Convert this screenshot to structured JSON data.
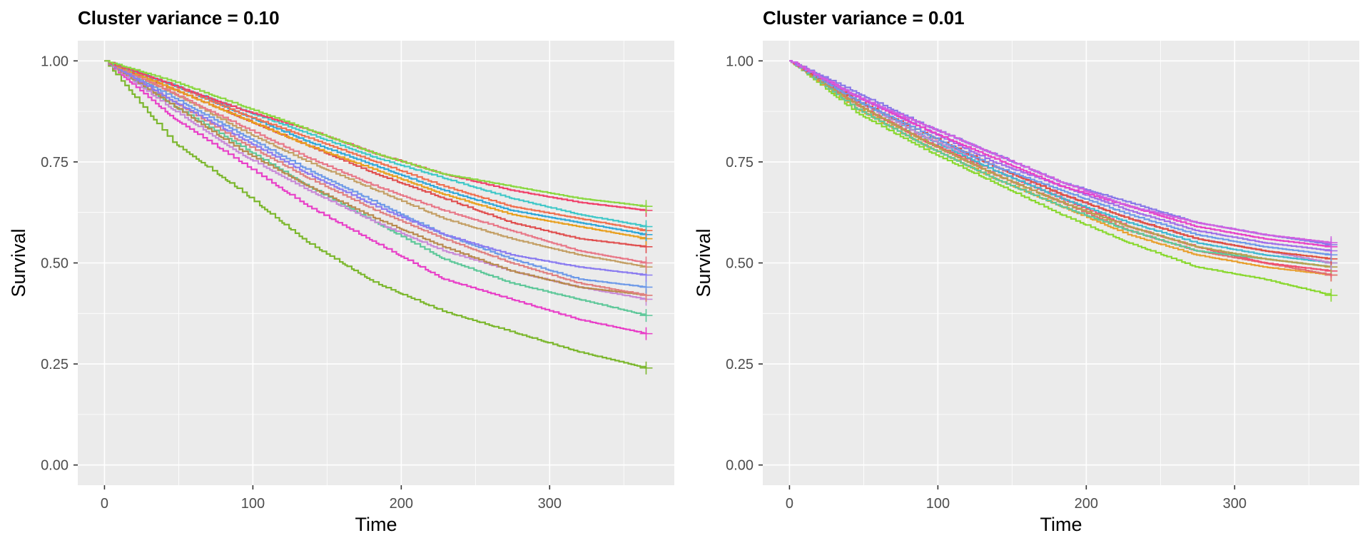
{
  "chart_data": [
    {
      "type": "line",
      "title": "Cluster variance = 0.10",
      "xlabel": "Time",
      "ylabel": "Survival",
      "xlim": [
        -18,
        384
      ],
      "ylim": [
        -0.05,
        1.05
      ],
      "xticks": [
        0,
        100,
        200,
        300
      ],
      "yticks": [
        0.0,
        0.25,
        0.5,
        0.75,
        1.0
      ],
      "ytick_labels": [
        "0.00",
        "0.25",
        "0.50",
        "0.75",
        "1.00"
      ],
      "grid": true,
      "legend": "none",
      "end_time": 365,
      "series": [
        {
          "color": "#7CB72E",
          "values": [
            1,
            0.8,
            0.68,
            0.55,
            0.45,
            0.38,
            0.33,
            0.28,
            0.24
          ]
        },
        {
          "color": "#E840C8",
          "values": [
            1,
            0.86,
            0.75,
            0.64,
            0.55,
            0.46,
            0.41,
            0.36,
            0.325
          ]
        },
        {
          "color": "#5FC89A",
          "values": [
            1,
            0.89,
            0.79,
            0.69,
            0.6,
            0.51,
            0.45,
            0.41,
            0.37
          ]
        },
        {
          "color": "#C88AD8",
          "values": [
            1,
            0.88,
            0.77,
            0.68,
            0.6,
            0.53,
            0.48,
            0.44,
            0.41
          ]
        },
        {
          "color": "#B88A4E",
          "values": [
            1,
            0.89,
            0.78,
            0.69,
            0.61,
            0.54,
            0.48,
            0.44,
            0.42
          ]
        },
        {
          "color": "#E08080",
          "values": [
            1,
            0.9,
            0.8,
            0.71,
            0.63,
            0.56,
            0.5,
            0.45,
            0.42
          ]
        },
        {
          "color": "#6E9AE8",
          "values": [
            1,
            0.91,
            0.82,
            0.73,
            0.65,
            0.57,
            0.51,
            0.46,
            0.44
          ]
        },
        {
          "color": "#8B7CF0",
          "values": [
            1,
            0.9,
            0.81,
            0.72,
            0.64,
            0.57,
            0.52,
            0.49,
            0.47
          ]
        },
        {
          "color": "#C4A066",
          "values": [
            1,
            0.92,
            0.83,
            0.75,
            0.68,
            0.61,
            0.56,
            0.52,
            0.49
          ]
        },
        {
          "color": "#E87888",
          "values": [
            1,
            0.92,
            0.84,
            0.76,
            0.69,
            0.63,
            0.58,
            0.53,
            0.5
          ]
        },
        {
          "color": "#E05050",
          "values": [
            1,
            0.93,
            0.86,
            0.79,
            0.72,
            0.66,
            0.6,
            0.56,
            0.54
          ]
        },
        {
          "color": "#E8A020",
          "values": [
            1,
            0.93,
            0.86,
            0.79,
            0.73,
            0.67,
            0.62,
            0.59,
            0.56
          ]
        },
        {
          "color": "#30A8D8",
          "values": [
            1,
            0.94,
            0.87,
            0.8,
            0.74,
            0.68,
            0.63,
            0.6,
            0.57
          ]
        },
        {
          "color": "#F07050",
          "values": [
            1,
            0.94,
            0.87,
            0.81,
            0.75,
            0.69,
            0.64,
            0.61,
            0.58
          ]
        },
        {
          "color": "#40C8C8",
          "values": [
            1,
            0.94,
            0.88,
            0.82,
            0.76,
            0.71,
            0.66,
            0.62,
            0.59
          ]
        },
        {
          "color": "#F0406A",
          "values": [
            1,
            0.94,
            0.88,
            0.83,
            0.77,
            0.72,
            0.68,
            0.65,
            0.63
          ]
        },
        {
          "color": "#8AD840",
          "values": [
            1,
            0.95,
            0.89,
            0.83,
            0.77,
            0.72,
            0.69,
            0.66,
            0.64
          ]
        }
      ]
    },
    {
      "type": "line",
      "title": "Cluster variance = 0.01",
      "xlabel": "Time",
      "ylabel": "Survival",
      "xlim": [
        -18,
        384
      ],
      "ylim": [
        -0.05,
        1.05
      ],
      "xticks": [
        0,
        100,
        200,
        300
      ],
      "yticks": [
        0.0,
        0.25,
        0.5,
        0.75,
        1.0
      ],
      "ytick_labels": [
        "0.00",
        "0.25",
        "0.50",
        "0.75",
        "1.00"
      ],
      "grid": true,
      "legend": "none",
      "end_time": 365,
      "series": [
        {
          "color": "#8AD830",
          "values": [
            1,
            0.87,
            0.78,
            0.7,
            0.62,
            0.55,
            0.49,
            0.46,
            0.42
          ]
        },
        {
          "color": "#E8A030",
          "values": [
            1,
            0.88,
            0.79,
            0.71,
            0.64,
            0.57,
            0.52,
            0.49,
            0.47
          ]
        },
        {
          "color": "#E07070",
          "values": [
            1,
            0.89,
            0.8,
            0.72,
            0.65,
            0.58,
            0.53,
            0.5,
            0.47
          ]
        },
        {
          "color": "#F05070",
          "values": [
            1,
            0.89,
            0.8,
            0.73,
            0.66,
            0.59,
            0.54,
            0.5,
            0.48
          ]
        },
        {
          "color": "#5FC89A",
          "values": [
            1,
            0.88,
            0.79,
            0.71,
            0.64,
            0.58,
            0.53,
            0.51,
            0.49
          ]
        },
        {
          "color": "#B8A050",
          "values": [
            1,
            0.89,
            0.8,
            0.72,
            0.65,
            0.59,
            0.54,
            0.51,
            0.49
          ]
        },
        {
          "color": "#40B8D0",
          "values": [
            1,
            0.9,
            0.81,
            0.73,
            0.66,
            0.6,
            0.55,
            0.52,
            0.5
          ]
        },
        {
          "color": "#C088D0",
          "values": [
            1,
            0.9,
            0.81,
            0.74,
            0.67,
            0.61,
            0.56,
            0.53,
            0.5
          ]
        },
        {
          "color": "#E05040",
          "values": [
            1,
            0.9,
            0.82,
            0.74,
            0.67,
            0.61,
            0.56,
            0.53,
            0.51
          ]
        },
        {
          "color": "#6E9AE8",
          "values": [
            1,
            0.9,
            0.82,
            0.74,
            0.68,
            0.62,
            0.57,
            0.54,
            0.52
          ]
        },
        {
          "color": "#A06EE8",
          "values": [
            1,
            0.91,
            0.83,
            0.75,
            0.69,
            0.63,
            0.58,
            0.55,
            0.53
          ]
        },
        {
          "color": "#E840C8",
          "values": [
            1,
            0.91,
            0.83,
            0.76,
            0.69,
            0.64,
            0.59,
            0.56,
            0.54
          ]
        },
        {
          "color": "#8878E8",
          "values": [
            1,
            0.92,
            0.84,
            0.77,
            0.7,
            0.65,
            0.6,
            0.57,
            0.545
          ]
        },
        {
          "color": "#D060E0",
          "values": [
            1,
            0.91,
            0.84,
            0.77,
            0.7,
            0.64,
            0.6,
            0.57,
            0.55
          ]
        }
      ]
    }
  ]
}
